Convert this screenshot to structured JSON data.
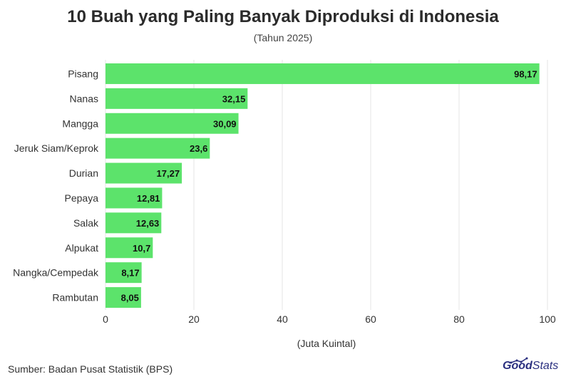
{
  "title": "10 Buah yang Paling Banyak Diproduksi di Indonesia",
  "subtitle": "(Tahun 2025)",
  "source": "Sumber: Badan Pusat Statistik (BPS)",
  "logo": {
    "good": "Good",
    "stats": "Stats"
  },
  "colors": {
    "bar": "#5ce36b",
    "grid": "#e6e6e6",
    "text": "#333333",
    "logo": "#2a2f7f"
  },
  "chart_data": {
    "type": "bar",
    "orientation": "horizontal",
    "categories": [
      "Pisang",
      "Nanas",
      "Mangga",
      "Jeruk Siam/Keprok",
      "Durian",
      "Pepaya",
      "Salak",
      "Alpukat",
      "Nangka/Cempedak",
      "Rambutan"
    ],
    "values": [
      98.17,
      32.15,
      30.09,
      23.6,
      17.27,
      12.81,
      12.63,
      10.7,
      8.17,
      8.05
    ],
    "value_labels": [
      "98,17",
      "32,15",
      "30,09",
      "23,6",
      "17,27",
      "12,81",
      "12,63",
      "10,7",
      "8,17",
      "8,05"
    ],
    "xlim": [
      0,
      100
    ],
    "xticks": [
      0,
      20,
      40,
      60,
      80,
      100
    ],
    "xlabel": "(Juta Kuintal)",
    "grid": "vertical"
  }
}
